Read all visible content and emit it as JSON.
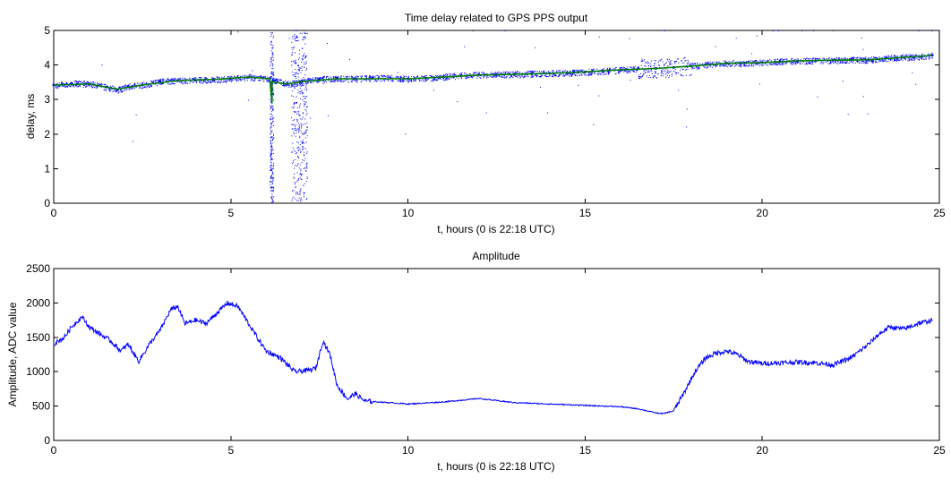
{
  "chart_data": [
    {
      "type": "scatter",
      "title": "Time delay related to GPS PPS output",
      "xlabel": "t, hours (0 is 22:18 UTC)",
      "ylabel": "delay, ms",
      "xlim": [
        0,
        25
      ],
      "ylim": [
        0,
        5
      ],
      "xticks": [
        "0",
        "5",
        "10",
        "15",
        "20",
        "25"
      ],
      "yticks": [
        "0",
        "1",
        "2",
        "3",
        "4",
        "5"
      ],
      "grid": false,
      "series": [
        {
          "kind": "scatter",
          "color": "#0000ff",
          "x": [
            0,
            0.5,
            1,
            1.5,
            1.8,
            2.1,
            2.5,
            3,
            3.5,
            4,
            4.5,
            5,
            5.5,
            5.9,
            6.2,
            6.6,
            7,
            7.5,
            8,
            8.5,
            9,
            9.5,
            10,
            10.5,
            11,
            11.5,
            12,
            12.5,
            13,
            13.5,
            14,
            14.5,
            15,
            15.5,
            16,
            16.5,
            17,
            17.5,
            18,
            18.5,
            19,
            19.5,
            20,
            20.5,
            21,
            21.5,
            22,
            22.5,
            23,
            23.5,
            24,
            24.5,
            24.8
          ],
          "y": [
            3.42,
            3.47,
            3.45,
            3.36,
            3.28,
            3.38,
            3.42,
            3.52,
            3.55,
            3.56,
            3.58,
            3.6,
            3.65,
            3.62,
            3.55,
            3.45,
            3.5,
            3.6,
            3.62,
            3.6,
            3.62,
            3.63,
            3.6,
            3.62,
            3.65,
            3.7,
            3.72,
            3.72,
            3.73,
            3.75,
            3.76,
            3.77,
            3.8,
            3.82,
            3.86,
            3.9,
            3.9,
            3.93,
            3.97,
            4.02,
            4.05,
            4.06,
            4.07,
            4.1,
            4.12,
            4.12,
            4.14,
            4.15,
            4.15,
            4.2,
            4.22,
            4.25,
            4.28
          ]
        },
        {
          "kind": "line",
          "color": "#008000",
          "x": [
            0,
            1,
            1.8,
            2.5,
            3.5,
            4.5,
            5.5,
            6.1,
            6.16,
            6.16,
            6.22,
            6.6,
            7,
            8,
            9,
            10,
            11,
            12,
            13,
            14,
            15,
            16,
            17,
            18,
            19,
            20,
            21,
            22,
            23,
            24,
            24.8
          ],
          "y": [
            3.42,
            3.45,
            3.3,
            3.42,
            3.55,
            3.58,
            3.65,
            3.6,
            2.9,
            3.52,
            3.5,
            3.45,
            3.52,
            3.6,
            3.6,
            3.6,
            3.65,
            3.71,
            3.73,
            3.76,
            3.8,
            3.86,
            3.9,
            3.97,
            4.05,
            4.07,
            4.12,
            4.14,
            4.15,
            4.22,
            4.28
          ]
        }
      ]
    },
    {
      "type": "line",
      "title": "Amplitude",
      "xlabel": "t, hours (0 is 22:18 UTC)",
      "ylabel": "Amplitude, ADC value",
      "xlim": [
        0,
        25
      ],
      "ylim": [
        0,
        2500
      ],
      "xticks": [
        "0",
        "5",
        "10",
        "15",
        "20",
        "25"
      ],
      "yticks": [
        "0",
        "500",
        "1000",
        "1500",
        "2000",
        "2500"
      ],
      "grid": false,
      "series": [
        {
          "color": "#0000ff",
          "x": [
            0,
            0.3,
            0.5,
            0.8,
            1.0,
            1.3,
            1.6,
            1.9,
            2.1,
            2.4,
            2.7,
            3.0,
            3.3,
            3.5,
            3.7,
            4.0,
            4.3,
            4.6,
            4.9,
            5.2,
            5.5,
            5.8,
            6.0,
            6.4,
            6.8,
            7.2,
            7.4,
            7.6,
            7.8,
            8.0,
            8.3,
            8.5,
            8.8,
            9.2,
            10,
            11,
            12,
            12.5,
            13,
            14,
            15,
            16,
            16.5,
            17,
            17.2,
            17.5,
            17.8,
            18.1,
            18.4,
            18.7,
            19.0,
            19.3,
            19.6,
            20.0,
            20.5,
            21.0,
            21.5,
            22.0,
            22.5,
            23.0,
            23.3,
            23.6,
            24.0,
            24.4,
            24.8
          ],
          "y": [
            1400,
            1500,
            1650,
            1800,
            1650,
            1550,
            1450,
            1300,
            1400,
            1150,
            1400,
            1600,
            1900,
            1950,
            1700,
            1750,
            1700,
            1850,
            2000,
            1950,
            1700,
            1450,
            1300,
            1200,
            1000,
            1020,
            1050,
            1450,
            1250,
            800,
            600,
            680,
            570,
            560,
            530,
            560,
            610,
            580,
            550,
            530,
            510,
            490,
            460,
            400,
            390,
            430,
            700,
            1000,
            1200,
            1270,
            1300,
            1250,
            1150,
            1120,
            1130,
            1140,
            1130,
            1100,
            1200,
            1400,
            1550,
            1650,
            1620,
            1700,
            1750
          ]
        }
      ]
    }
  ]
}
